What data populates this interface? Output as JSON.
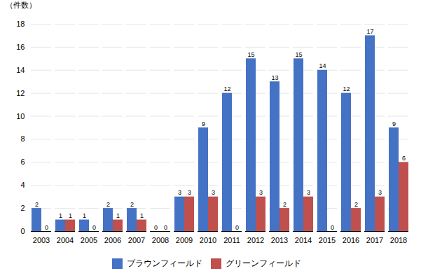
{
  "chart_data": {
    "type": "bar",
    "ylabel": "（件数）",
    "categories": [
      "2003",
      "2004",
      "2005",
      "2006",
      "2007",
      "2008",
      "2009",
      "2010",
      "2011",
      "2012",
      "2013",
      "2014",
      "2015",
      "2016",
      "2017",
      "2018"
    ],
    "series": [
      {
        "name": "ブラウンフィールド",
        "color": "#4472C4",
        "values": [
          2,
          1,
          1,
          2,
          2,
          0,
          3,
          9,
          12,
          15,
          13,
          15,
          14,
          12,
          17,
          9
        ]
      },
      {
        "name": "グリーンフィールド",
        "color": "#C0504D",
        "values": [
          0,
          1,
          0,
          1,
          1,
          0,
          3,
          3,
          0,
          3,
          2,
          3,
          0,
          2,
          3,
          6
        ]
      }
    ],
    "ylim": [
      0,
      18
    ],
    "yticks": [
      0,
      2,
      4,
      6,
      8,
      10,
      12,
      14,
      16,
      18
    ],
    "grid": true,
    "data_labels": true,
    "legend": "bottom"
  }
}
